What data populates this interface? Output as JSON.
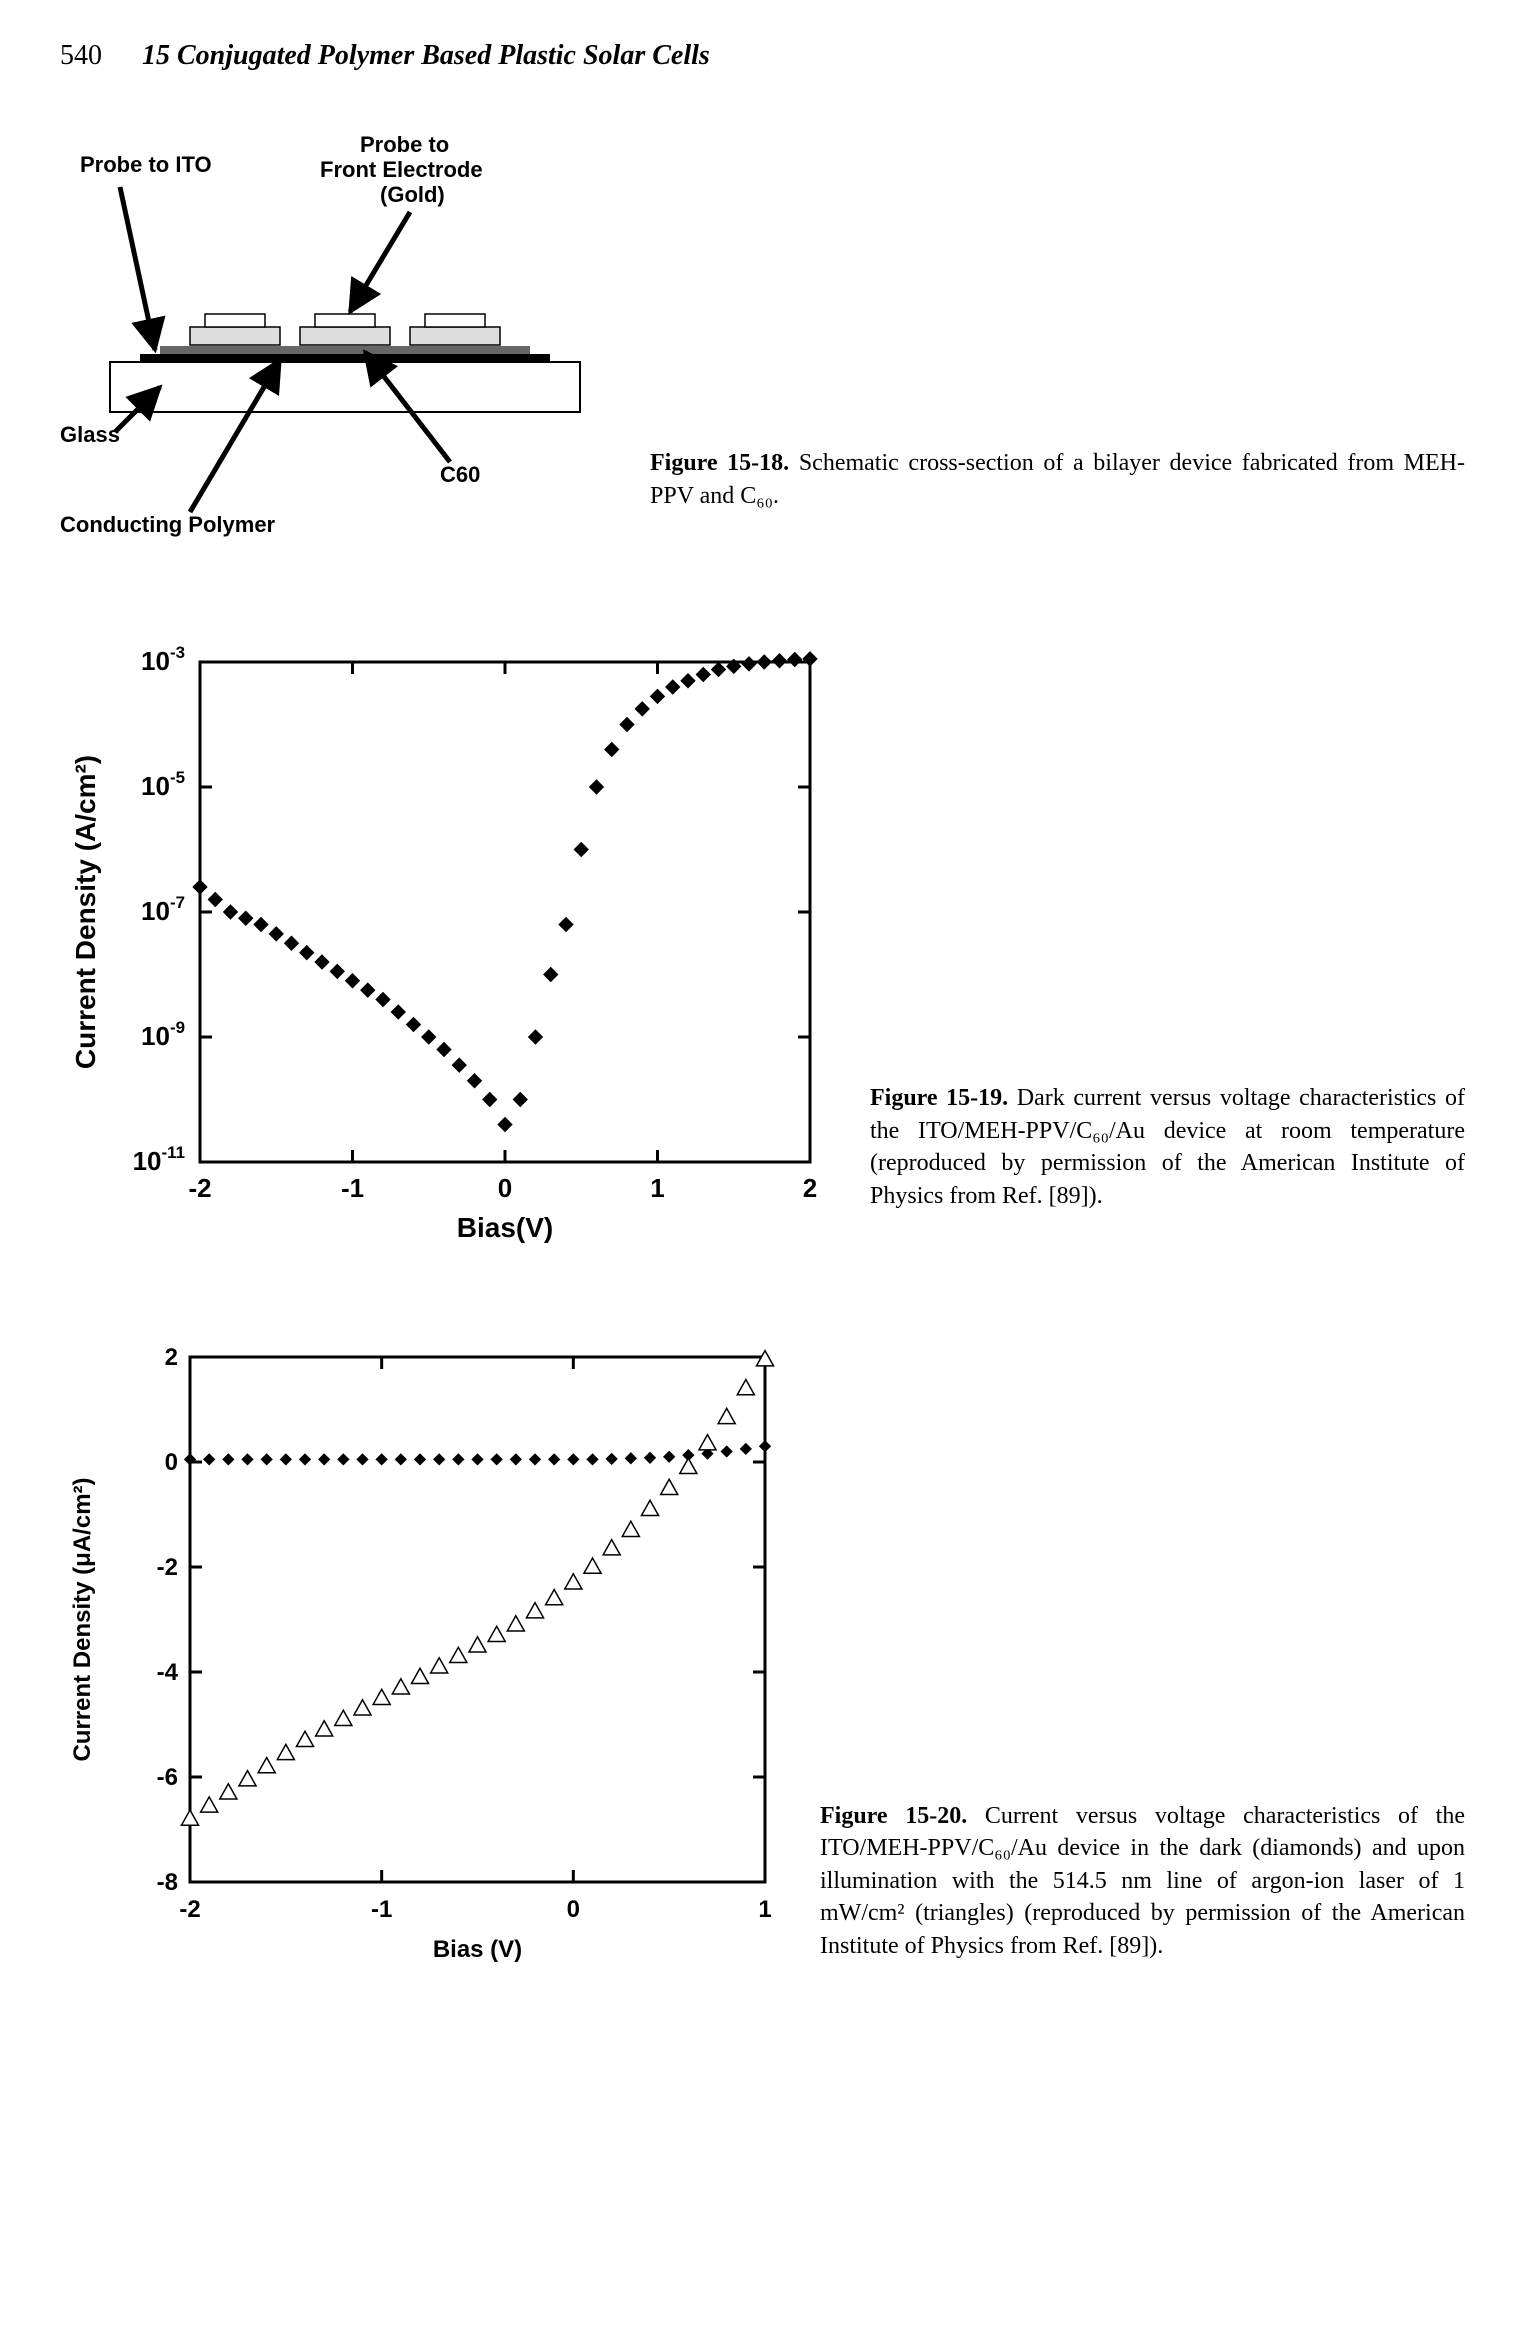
{
  "header": {
    "page_number": "540",
    "chapter": "15 Conjugated Polymer Based Plastic Solar Cells"
  },
  "fig18": {
    "labels": {
      "probe_ito": "Probe to ITO",
      "probe_front_1": "Probe to",
      "probe_front_2": "Front Electrode",
      "probe_front_3": "(Gold)",
      "glass": "Glass",
      "conducting_polymer": "Conducting Polymer",
      "c60": "C60"
    },
    "caption_label": "Figure 15-18.",
    "caption_text": " Schematic cross-section of a bilayer device fabricated from MEH-PPV and C₆₀.",
    "label_fontsize": 22
  },
  "fig19": {
    "type": "scatter-log",
    "xlabel": "Bias(V)",
    "ylabel": "Current Density (A/cm²)",
    "xlim": [
      -2,
      2
    ],
    "ylim_exponents": [
      -11,
      -3
    ],
    "xtick_step": 1,
    "ytick_exponents": [
      -11,
      -9,
      -7,
      -5,
      -3
    ],
    "label_fontsize": 28,
    "tick_fontsize": 26,
    "marker": "diamond",
    "marker_color": "#000000",
    "marker_size": 10,
    "background_color": "#ffffff",
    "axis_color": "#000000",
    "data": [
      [
        -2.0,
        -6.6
      ],
      [
        -1.9,
        -6.8
      ],
      [
        -1.8,
        -7.0
      ],
      [
        -1.7,
        -7.1
      ],
      [
        -1.6,
        -7.2
      ],
      [
        -1.5,
        -7.35
      ],
      [
        -1.4,
        -7.5
      ],
      [
        -1.3,
        -7.65
      ],
      [
        -1.2,
        -7.8
      ],
      [
        -1.1,
        -7.95
      ],
      [
        -1.0,
        -8.1
      ],
      [
        -0.9,
        -8.25
      ],
      [
        -0.8,
        -8.4
      ],
      [
        -0.7,
        -8.6
      ],
      [
        -0.6,
        -8.8
      ],
      [
        -0.5,
        -9.0
      ],
      [
        -0.4,
        -9.2
      ],
      [
        -0.3,
        -9.45
      ],
      [
        -0.2,
        -9.7
      ],
      [
        -0.1,
        -10.0
      ],
      [
        0.0,
        -10.4
      ],
      [
        0.1,
        -10.0
      ],
      [
        0.2,
        -9.0
      ],
      [
        0.3,
        -8.0
      ],
      [
        0.4,
        -7.2
      ],
      [
        0.5,
        -6.0
      ],
      [
        0.6,
        -5.0
      ],
      [
        0.7,
        -4.4
      ],
      [
        0.8,
        -4.0
      ],
      [
        0.9,
        -3.75
      ],
      [
        1.0,
        -3.55
      ],
      [
        1.1,
        -3.4
      ],
      [
        1.2,
        -3.3
      ],
      [
        1.3,
        -3.2
      ],
      [
        1.4,
        -3.12
      ],
      [
        1.5,
        -3.07
      ],
      [
        1.6,
        -3.03
      ],
      [
        1.7,
        -3.0
      ],
      [
        1.8,
        -2.98
      ],
      [
        1.9,
        -2.96
      ],
      [
        2.0,
        -2.95
      ]
    ],
    "caption_label": "Figure 15-19.",
    "caption_text": " Dark current versus voltage characteristics of the ITO/MEH-PPV/C₆₀/Au device at room temperature (reproduced by permission of the American Institute of Physics from Ref. [89])."
  },
  "fig20": {
    "type": "scatter-linear",
    "xlabel": "Bias (V)",
    "ylabel": "Current Density (μA/cm²)",
    "xlim": [
      -2,
      1
    ],
    "ylim": [
      -8,
      2
    ],
    "xtick_step": 1,
    "ytick_step": 2,
    "label_fontsize": 24,
    "tick_fontsize": 24,
    "background_color": "#ffffff",
    "axis_color": "#000000",
    "series": [
      {
        "name": "dark",
        "marker": "diamond",
        "marker_color": "#000000",
        "marker_size": 8,
        "data": [
          [
            -2.0,
            0.05
          ],
          [
            -1.9,
            0.05
          ],
          [
            -1.8,
            0.05
          ],
          [
            -1.7,
            0.05
          ],
          [
            -1.6,
            0.05
          ],
          [
            -1.5,
            0.05
          ],
          [
            -1.4,
            0.05
          ],
          [
            -1.3,
            0.05
          ],
          [
            -1.2,
            0.05
          ],
          [
            -1.1,
            0.05
          ],
          [
            -1.0,
            0.05
          ],
          [
            -0.9,
            0.05
          ],
          [
            -0.8,
            0.05
          ],
          [
            -0.7,
            0.05
          ],
          [
            -0.6,
            0.05
          ],
          [
            -0.5,
            0.05
          ],
          [
            -0.4,
            0.05
          ],
          [
            -0.3,
            0.05
          ],
          [
            -0.2,
            0.05
          ],
          [
            -0.1,
            0.05
          ],
          [
            0.0,
            0.05
          ],
          [
            0.1,
            0.05
          ],
          [
            0.2,
            0.06
          ],
          [
            0.3,
            0.07
          ],
          [
            0.4,
            0.08
          ],
          [
            0.5,
            0.1
          ],
          [
            0.6,
            0.13
          ],
          [
            0.7,
            0.16
          ],
          [
            0.8,
            0.2
          ],
          [
            0.9,
            0.25
          ],
          [
            1.0,
            0.3
          ]
        ]
      },
      {
        "name": "illuminated",
        "marker": "triangle",
        "marker_stroke": "#000000",
        "marker_fill": "#ffffff",
        "marker_size": 9,
        "data": [
          [
            -2.0,
            -6.8
          ],
          [
            -1.9,
            -6.55
          ],
          [
            -1.8,
            -6.3
          ],
          [
            -1.7,
            -6.05
          ],
          [
            -1.6,
            -5.8
          ],
          [
            -1.5,
            -5.55
          ],
          [
            -1.4,
            -5.3
          ],
          [
            -1.3,
            -5.1
          ],
          [
            -1.2,
            -4.9
          ],
          [
            -1.1,
            -4.7
          ],
          [
            -1.0,
            -4.5
          ],
          [
            -0.9,
            -4.3
          ],
          [
            -0.8,
            -4.1
          ],
          [
            -0.7,
            -3.9
          ],
          [
            -0.6,
            -3.7
          ],
          [
            -0.5,
            -3.5
          ],
          [
            -0.4,
            -3.3
          ],
          [
            -0.3,
            -3.1
          ],
          [
            -0.2,
            -2.85
          ],
          [
            -0.1,
            -2.6
          ],
          [
            0.0,
            -2.3
          ],
          [
            0.1,
            -2.0
          ],
          [
            0.2,
            -1.65
          ],
          [
            0.3,
            -1.3
          ],
          [
            0.4,
            -0.9
          ],
          [
            0.5,
            -0.5
          ],
          [
            0.6,
            -0.1
          ],
          [
            0.7,
            0.35
          ],
          [
            0.8,
            0.85
          ],
          [
            0.9,
            1.4
          ],
          [
            1.0,
            1.95
          ]
        ]
      }
    ],
    "caption_label": "Figure 15-20.",
    "caption_text": " Current versus voltage characteristics of the ITO/MEH-PPV/C₆₀/Au device in the dark (diamonds) and upon illumination with the 514.5 nm line of argon-ion laser of 1 mW/cm² (triangles) (reproduced by permission of the American Institute of Physics from Ref. [89])."
  }
}
